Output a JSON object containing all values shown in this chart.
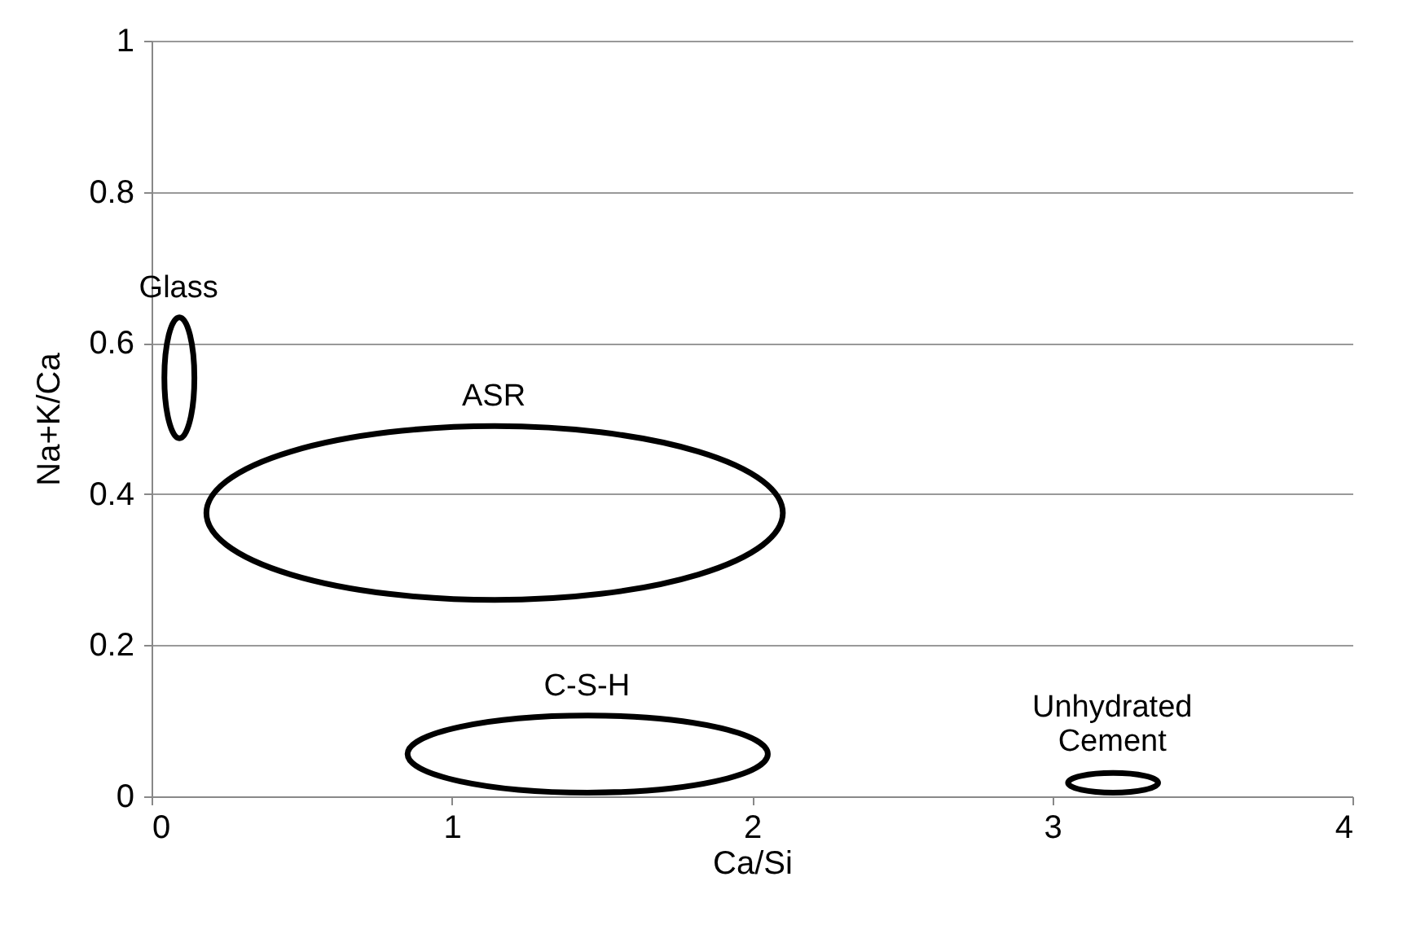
{
  "chart_data": {
    "type": "scatter",
    "xlabel": "Ca/Si",
    "ylabel": "Na+K/Ca",
    "xlim": [
      0,
      4
    ],
    "xticks": [
      0,
      1,
      2,
      3,
      4
    ],
    "ylim": [
      0,
      1
    ],
    "yticks": [
      0,
      0.2,
      0.4,
      0.6,
      0.8,
      1
    ],
    "grid": "y",
    "annotations": [
      "Glass",
      "ASR",
      "C-S-H",
      "Unhydrated Cement"
    ]
  }
}
